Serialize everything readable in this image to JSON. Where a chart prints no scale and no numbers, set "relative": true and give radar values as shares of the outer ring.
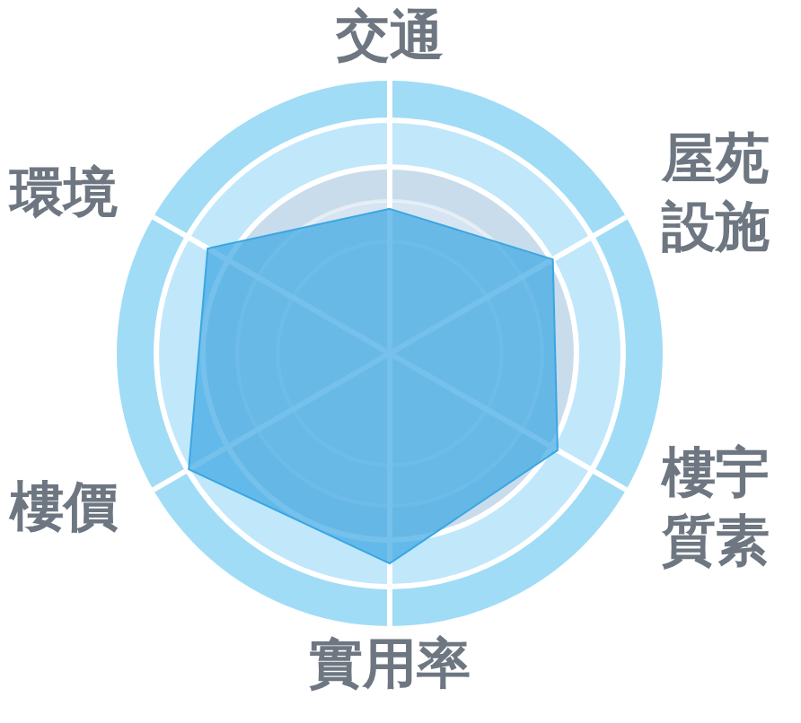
{
  "chart_data": {
    "type": "radar",
    "categories": [
      "交通",
      "屋苑設施",
      "樓宇質素",
      "實用率",
      "樓價",
      "環境"
    ],
    "series": [
      {
        "color": "#3aa6e2",
        "values": [
          0.53,
          0.69,
          0.71,
          0.77,
          0.85,
          0.77
        ]
      }
    ],
    "relative": true,
    "grid": true
  }
}
